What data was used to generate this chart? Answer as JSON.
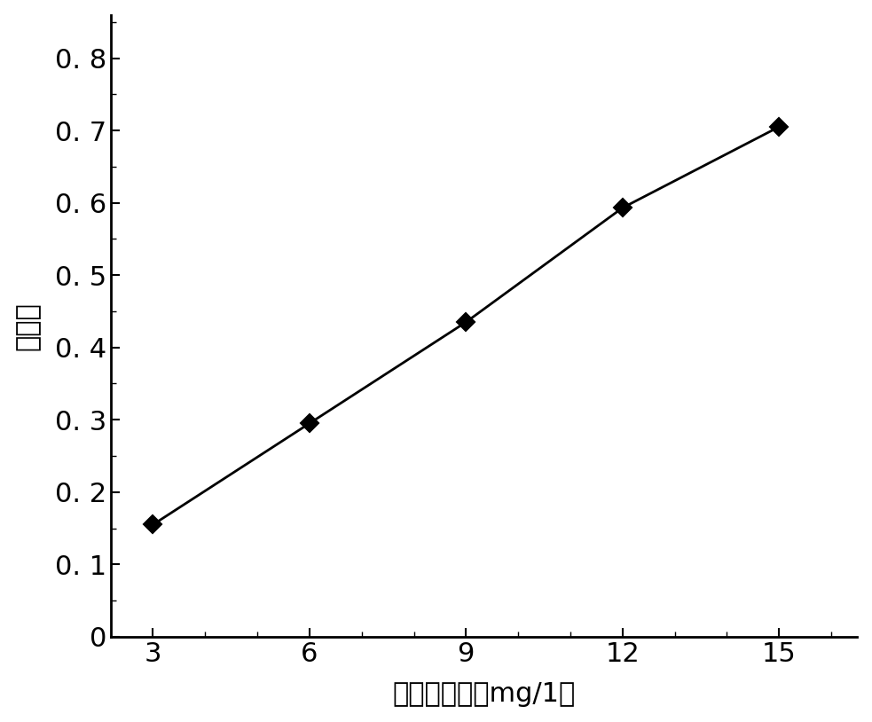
{
  "x": [
    3,
    6,
    9,
    12,
    15
  ],
  "y": [
    0.155,
    0.295,
    0.435,
    0.593,
    0.705
  ],
  "xlabel": "标准液浓度（mg/1）",
  "ylabel": "吸光度",
  "xlim": [
    2.2,
    16.5
  ],
  "ylim": [
    0,
    0.86
  ],
  "xticks": [
    3,
    6,
    9,
    12,
    15
  ],
  "yticks": [
    0,
    0.1,
    0.2,
    0.3,
    0.4,
    0.5,
    0.6,
    0.7,
    0.8
  ],
  "ytick_labels": [
    "0",
    "0. 1",
    "0. 2",
    "0. 3",
    "0. 4",
    "0. 5",
    "0. 6",
    "0. 7",
    "0. 8"
  ],
  "xtick_labels": [
    "3",
    "6",
    "9",
    "12",
    "15"
  ],
  "line_color": "#000000",
  "marker": "D",
  "marker_size": 10,
  "marker_facecolor": "#000000",
  "marker_edgecolor": "#000000",
  "linewidth": 2.0,
  "xlabel_fontsize": 22,
  "ylabel_fontsize": 22,
  "tick_fontsize": 22,
  "background_color": "#ffffff",
  "figsize": [
    9.83,
    8.14
  ],
  "dpi": 100
}
